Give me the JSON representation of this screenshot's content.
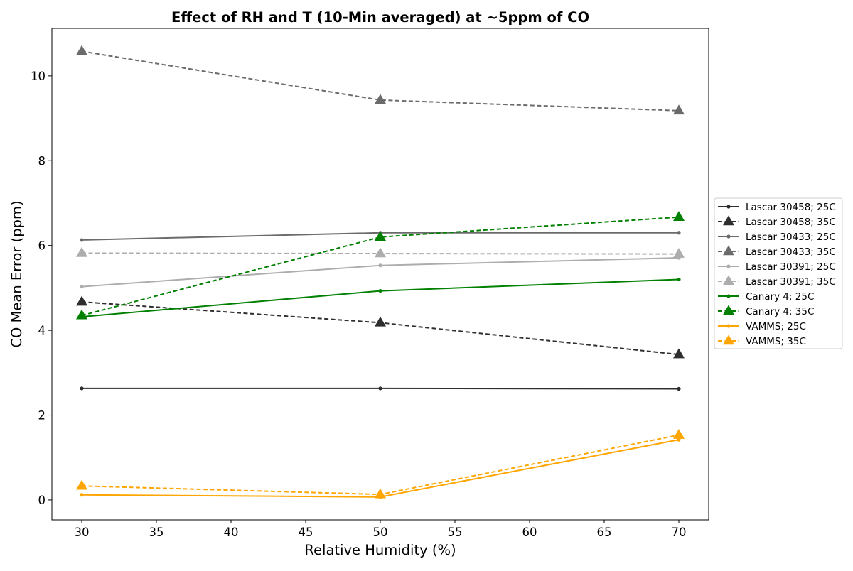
{
  "chart_data": {
    "type": "line",
    "title": "Effect of RH and T (10-Min averaged) at ~5ppm of CO",
    "xlabel": "Relative Humidity (%)",
    "ylabel": "CO Mean Error (ppm)",
    "xlim": [
      28,
      72
    ],
    "ylim": [
      -0.47,
      11.12
    ],
    "xticks": [
      30,
      35,
      40,
      45,
      50,
      55,
      60,
      65,
      70
    ],
    "yticks": [
      0,
      2,
      4,
      6,
      8,
      10
    ],
    "grid": false,
    "legend_position": "outside-right",
    "x": [
      30,
      50,
      70
    ],
    "series": [
      {
        "name": "Lascar 30458; 25C",
        "values": [
          2.63,
          2.63,
          2.62
        ],
        "color": "#2e2e2e",
        "dash": "solid",
        "marker": "dot"
      },
      {
        "name": "Lascar 30458; 35C",
        "values": [
          4.67,
          4.18,
          3.43
        ],
        "color": "#2e2e2e",
        "dash": "dashed",
        "marker": "triangle"
      },
      {
        "name": "Lascar 30433; 25C",
        "values": [
          6.13,
          6.3,
          6.3
        ],
        "color": "#6b6b6b",
        "dash": "solid",
        "marker": "dot"
      },
      {
        "name": "Lascar 30433; 35C",
        "values": [
          10.58,
          9.43,
          9.18
        ],
        "color": "#6b6b6b",
        "dash": "dashed",
        "marker": "triangle"
      },
      {
        "name": "Lascar 30391; 25C",
        "values": [
          5.03,
          5.53,
          5.71
        ],
        "color": "#adadad",
        "dash": "solid",
        "marker": "dot"
      },
      {
        "name": "Lascar 30391; 35C",
        "values": [
          5.82,
          5.81,
          5.8
        ],
        "color": "#adadad",
        "dash": "dashed",
        "marker": "triangle"
      },
      {
        "name": "Canary 4; 25C",
        "values": [
          4.32,
          4.93,
          5.2
        ],
        "color": "#008000",
        "dash": "solid",
        "marker": "dot"
      },
      {
        "name": "Canary 4; 35C",
        "values": [
          4.35,
          6.2,
          6.67
        ],
        "color": "#008000",
        "dash": "dashed",
        "marker": "triangle"
      },
      {
        "name": "VAMMS; 25C",
        "values": [
          0.12,
          0.07,
          1.42
        ],
        "color": "#ffa500",
        "dash": "solid",
        "marker": "dot"
      },
      {
        "name": "VAMMS; 35C",
        "values": [
          0.33,
          0.13,
          1.53
        ],
        "color": "#ffa500",
        "dash": "dashed",
        "marker": "triangle"
      }
    ]
  }
}
